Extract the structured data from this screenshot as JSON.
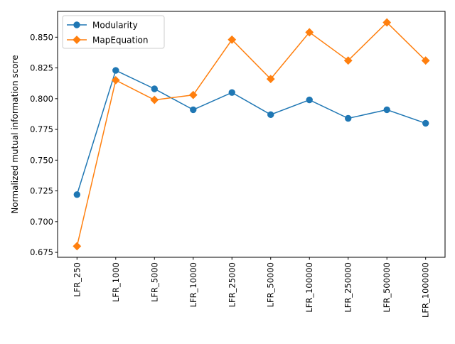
{
  "chart_data": {
    "type": "line",
    "title": "",
    "xlabel": "",
    "ylabel": "Normalized mutual information score",
    "categories": [
      "LFR_250",
      "LFR_1000",
      "LFR_5000",
      "LFR_10000",
      "LFR_25000",
      "LFR_50000",
      "LFR_100000",
      "LFR_250000",
      "LFR_500000",
      "LFR_1000000"
    ],
    "ylim": [
      0.671,
      0.871
    ],
    "yticks": [
      0.675,
      0.7,
      0.725,
      0.75,
      0.775,
      0.8,
      0.825,
      0.85
    ],
    "ytick_labels": [
      "0.675",
      "0.700",
      "0.725",
      "0.750",
      "0.775",
      "0.800",
      "0.825",
      "0.850"
    ],
    "grid": false,
    "legend_position": "top-left",
    "series": [
      {
        "name": "Modularity",
        "color": "#1f77b4",
        "marker": "circle",
        "values": [
          0.722,
          0.823,
          0.808,
          0.791,
          0.805,
          0.787,
          0.799,
          0.784,
          0.791,
          0.78
        ]
      },
      {
        "name": "MapEquation",
        "color": "#ff7f0e",
        "marker": "diamond",
        "values": [
          0.68,
          0.815,
          0.799,
          0.803,
          0.848,
          0.816,
          0.854,
          0.831,
          0.862,
          0.831
        ]
      }
    ]
  }
}
